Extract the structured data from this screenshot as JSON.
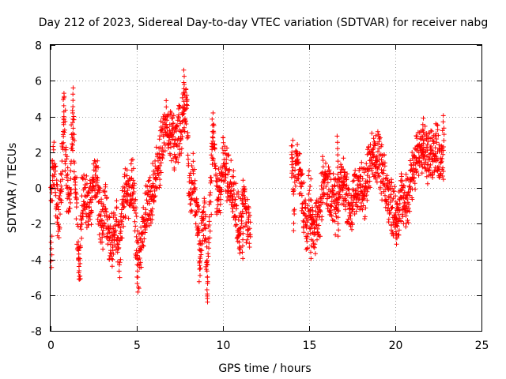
{
  "chart_data": {
    "type": "scatter",
    "title": "Day 212 of 2023, Sidereal Day-to-day VTEC variation (SDTVAR) for receiver nabg",
    "xlabel": "GPS time / hours",
    "ylabel": "SDTVAR / TECUs",
    "xlim": [
      0,
      25
    ],
    "ylim": [
      -8,
      8
    ],
    "xticks": [
      0,
      5,
      10,
      15,
      20,
      25
    ],
    "yticks": [
      -8,
      -6,
      -4,
      -2,
      0,
      2,
      4,
      6,
      8
    ],
    "grid": true,
    "marker": "plus",
    "color": "#ff0000",
    "series": [
      {
        "name": "SDTVAR",
        "profile": [
          [
            0.0,
            -0.5
          ],
          [
            0.1,
            0.5
          ],
          [
            0.2,
            1.5
          ],
          [
            0.3,
            0.0
          ],
          [
            0.4,
            -1.0
          ],
          [
            0.5,
            -1.5
          ],
          [
            0.7,
            2.0
          ],
          [
            0.8,
            4.0
          ],
          [
            0.9,
            1.0
          ],
          [
            1.0,
            0.0
          ],
          [
            1.1,
            -1.5
          ],
          [
            1.2,
            2.0
          ],
          [
            1.3,
            3.5
          ],
          [
            1.4,
            1.0
          ],
          [
            1.5,
            -1.0
          ],
          [
            1.6,
            -3.0
          ],
          [
            1.7,
            -4.5
          ],
          [
            1.8,
            -1.0
          ],
          [
            2.0,
            -0.5
          ],
          [
            2.2,
            -1.5
          ],
          [
            2.4,
            -0.5
          ],
          [
            2.6,
            1.0
          ],
          [
            2.8,
            -1.0
          ],
          [
            3.0,
            -2.0
          ],
          [
            3.2,
            -1.0
          ],
          [
            3.4,
            -2.5
          ],
          [
            3.6,
            -3.0
          ],
          [
            3.8,
            -2.0
          ],
          [
            4.0,
            -3.5
          ],
          [
            4.2,
            -1.0
          ],
          [
            4.4,
            0.0
          ],
          [
            4.6,
            -0.5
          ],
          [
            4.8,
            0.5
          ],
          [
            4.9,
            -1.5
          ],
          [
            5.0,
            -3.5
          ],
          [
            5.1,
            -4.5
          ],
          [
            5.2,
            -3.5
          ],
          [
            5.3,
            -2.5
          ],
          [
            5.5,
            -1.5
          ],
          [
            5.7,
            -1.0
          ],
          [
            5.9,
            -0.5
          ],
          [
            6.0,
            0.5
          ],
          [
            6.2,
            1.0
          ],
          [
            6.4,
            2.0
          ],
          [
            6.6,
            3.5
          ],
          [
            6.8,
            3.5
          ],
          [
            7.0,
            2.5
          ],
          [
            7.2,
            2.5
          ],
          [
            7.4,
            3.0
          ],
          [
            7.6,
            3.5
          ],
          [
            7.8,
            4.5
          ],
          [
            7.9,
            5.0
          ],
          [
            8.0,
            1.0
          ],
          [
            8.1,
            -0.5
          ],
          [
            8.3,
            0.5
          ],
          [
            8.5,
            -1.5
          ],
          [
            8.7,
            -3.5
          ],
          [
            8.9,
            -1.0
          ],
          [
            9.0,
            -2.5
          ],
          [
            9.1,
            -5.0
          ],
          [
            9.2,
            -2.0
          ],
          [
            9.3,
            0.0
          ],
          [
            9.4,
            2.5
          ],
          [
            9.5,
            3.0
          ],
          [
            9.6,
            0.0
          ],
          [
            9.8,
            -0.5
          ],
          [
            10.0,
            1.5
          ],
          [
            10.2,
            1.0
          ],
          [
            10.4,
            0.5
          ],
          [
            10.6,
            -0.5
          ],
          [
            10.8,
            -1.5
          ],
          [
            11.0,
            -2.5
          ],
          [
            11.2,
            -0.5
          ],
          [
            11.4,
            -2.0
          ],
          [
            11.6,
            -2.5
          ],
          [
            14.0,
            2.3
          ],
          [
            14.1,
            -1.0
          ],
          [
            14.3,
            1.5
          ],
          [
            14.5,
            0.5
          ],
          [
            14.7,
            -1.5
          ],
          [
            14.9,
            -2.5
          ],
          [
            15.0,
            -0.5
          ],
          [
            15.3,
            -2.5
          ],
          [
            15.6,
            -1.5
          ],
          [
            15.8,
            0.5
          ],
          [
            16.0,
            0.0
          ],
          [
            16.2,
            -0.5
          ],
          [
            16.5,
            -1.0
          ],
          [
            16.7,
            0.0
          ],
          [
            17.0,
            0.5
          ],
          [
            17.2,
            -0.5
          ],
          [
            17.4,
            -1.5
          ],
          [
            17.6,
            -0.5
          ],
          [
            17.8,
            0.0
          ],
          [
            18.0,
            0.0
          ],
          [
            18.2,
            -0.5
          ],
          [
            18.4,
            1.0
          ],
          [
            18.6,
            1.5
          ],
          [
            18.8,
            2.0
          ],
          [
            19.0,
            1.5
          ],
          [
            19.2,
            1.0
          ],
          [
            19.4,
            0.0
          ],
          [
            19.6,
            -0.5
          ],
          [
            19.8,
            -1.0
          ],
          [
            20.0,
            -1.5
          ],
          [
            20.2,
            -1.0
          ],
          [
            20.4,
            -0.5
          ],
          [
            20.6,
            -1.0
          ],
          [
            20.8,
            0.0
          ],
          [
            21.0,
            0.5
          ],
          [
            21.2,
            1.5
          ],
          [
            21.4,
            2.5
          ],
          [
            21.6,
            2.5
          ],
          [
            21.8,
            2.0
          ],
          [
            22.0,
            1.5
          ],
          [
            22.2,
            2.0
          ],
          [
            22.4,
            2.5
          ],
          [
            22.6,
            1.5
          ],
          [
            22.8,
            1.5
          ]
        ],
        "peaks": [
          [
            0.05,
            -4.45
          ],
          [
            0.75,
            5.3
          ],
          [
            1.3,
            5.6
          ],
          [
            1.65,
            -5.1
          ],
          [
            5.05,
            -5.35
          ],
          [
            7.75,
            6.6
          ],
          [
            8.65,
            -5.25
          ],
          [
            9.1,
            -6.05
          ],
          [
            9.4,
            4.2
          ],
          [
            11.15,
            -3.95
          ],
          [
            14.0,
            2.35
          ],
          [
            15.1,
            -3.95
          ],
          [
            16.65,
            2.9
          ],
          [
            16.7,
            -2.7
          ],
          [
            20.05,
            -3.15
          ],
          [
            21.6,
            3.9
          ],
          [
            22.8,
            4.05
          ]
        ]
      }
    ]
  }
}
